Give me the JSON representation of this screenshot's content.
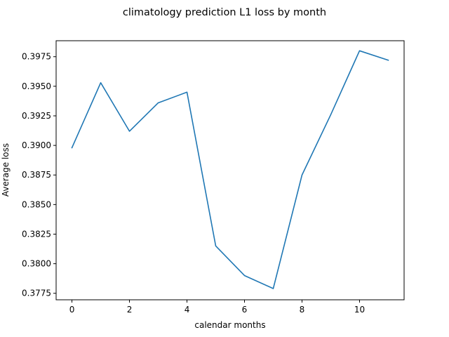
{
  "chart_data": {
    "type": "line",
    "title": "climatology prediction L1 loss by month",
    "xlabel": "calendar months",
    "ylabel": "Average loss",
    "x": [
      0,
      1,
      2,
      3,
      4,
      5,
      6,
      7,
      8,
      9,
      10,
      11
    ],
    "series": [
      {
        "color": "#1f77b4",
        "values": [
          0.3898,
          0.3953,
          0.3912,
          0.3936,
          0.3945,
          0.3815,
          0.379,
          0.3779,
          0.3875,
          0.3926,
          0.398,
          0.3972
        ]
      }
    ],
    "xlim": [
      -0.55,
      11.55
    ],
    "ylim": [
      0.37695,
      0.39885
    ],
    "xticks": [
      0,
      2,
      4,
      6,
      8,
      10
    ],
    "xtick_labels": [
      "0",
      "2",
      "4",
      "6",
      "8",
      "10"
    ],
    "yticks": [
      0.3775,
      0.38,
      0.3825,
      0.385,
      0.3875,
      0.39,
      0.3925,
      0.395,
      0.3975
    ],
    "ytick_labels": [
      "0.3775",
      "0.3800",
      "0.3825",
      "0.3850",
      "0.3875",
      "0.3900",
      "0.3925",
      "0.3950",
      "0.3975"
    ],
    "grid": false,
    "legend": "none"
  }
}
